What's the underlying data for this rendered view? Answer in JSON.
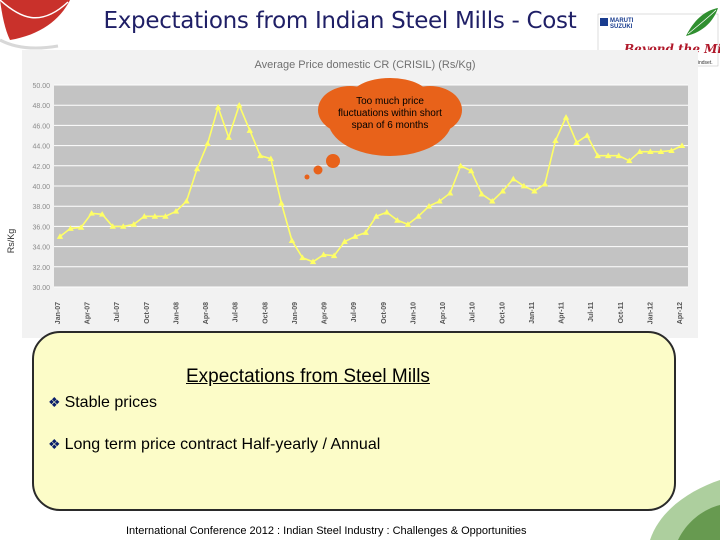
{
  "slide": {
    "title": "Expectations from Indian Steel Mills - Cost"
  },
  "logo": {
    "maker_line1": "MARUTI",
    "maker_line2": "SUZUKI",
    "tagline_main": "Beyond the Million",
    "tagline_sub": "It's not just cars. It's a new mindset."
  },
  "chart_data": {
    "type": "line",
    "title": "Average Price domestic CR (CRISIL) (Rs/Kg)",
    "xlabel": "",
    "ylabel": "Rs/Kg",
    "ylim": [
      30,
      50
    ],
    "yticks": [
      "50.00",
      "48.00",
      "46.00",
      "44.00",
      "42.00",
      "40.00",
      "38.00",
      "36.00",
      "34.00",
      "32.00",
      "30.00"
    ],
    "x_tick_labels": [
      "Jan-07",
      "Apr-07",
      "Jul-07",
      "Oct-07",
      "Jan-08",
      "Apr-08",
      "Jul-08",
      "Oct-08",
      "Jan-09",
      "Apr-09",
      "Jul-09",
      "Oct-09",
      "Jan-10",
      "Apr-10",
      "Jul-10",
      "Oct-10",
      "Jan-11",
      "Apr-11",
      "Jul-11",
      "Oct-11",
      "Jan-12",
      "Apr-12"
    ],
    "grid": true,
    "series": [
      {
        "color": "#ffff66",
        "values": [
          35.0,
          35.8,
          35.9,
          37.3,
          37.2,
          36.0,
          36.0,
          36.2,
          37.0,
          37.0,
          37.0,
          37.5,
          38.5,
          41.7,
          44.2,
          47.8,
          44.8,
          48.0,
          45.5,
          43.0,
          42.7,
          38.3,
          34.6,
          32.9,
          32.5,
          33.2,
          33.1,
          34.5,
          35.0,
          35.4,
          37.0,
          37.4,
          36.6,
          36.2,
          37.0,
          38.0,
          38.5,
          39.3,
          42.0,
          41.5,
          39.2,
          38.5,
          39.5,
          40.7,
          40.0,
          39.5,
          40.2,
          44.5,
          46.8,
          44.3,
          45.0,
          43.0,
          43.0,
          43.0,
          42.5,
          43.4,
          43.4,
          43.4,
          43.5,
          44.0
        ]
      }
    ],
    "annotations": [
      "Too much price fluctuations within short span of 6 months"
    ]
  },
  "expectations": {
    "heading": "Expectations from Steel Mills",
    "bullets": [
      "Stable prices",
      "Long term price contract Half-yearly / Annual"
    ],
    "bullet_mark": "❖"
  },
  "footer": {
    "text": "International Conference 2012 : Indian Steel Industry : Challenges & Opportunities"
  },
  "colors": {
    "title": "#1f1f66",
    "plot_bg": "#c3c3c3",
    "line": "#ffff66",
    "callout": "#e8621a",
    "box_bg": "#fcfcc8"
  }
}
